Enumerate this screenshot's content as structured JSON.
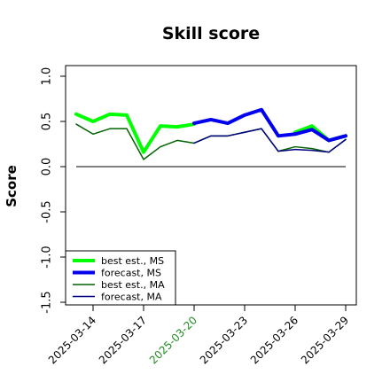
{
  "chart_data": {
    "type": "line",
    "title": "Skill score",
    "xlabel": "",
    "ylabel": "Score",
    "ylim": [
      -1.5,
      1.0
    ],
    "yticks": [
      -1.5,
      -1.0,
      -0.5,
      0.0,
      0.5,
      1.0
    ],
    "ytick_labels": [
      "-1.5",
      "-1.0",
      "-0.5",
      "0.0",
      "0.5",
      "1.0"
    ],
    "x": [
      "2025-03-13",
      "2025-03-14",
      "2025-03-15",
      "2025-03-16",
      "2025-03-17",
      "2025-03-18",
      "2025-03-19",
      "2025-03-20",
      "2025-03-21",
      "2025-03-22",
      "2025-03-23",
      "2025-03-24",
      "2025-03-25",
      "2025-03-26",
      "2025-03-27",
      "2025-03-28",
      "2025-03-29"
    ],
    "xtick_labels": [
      "2025-03-14",
      "2025-03-17",
      "2025-03-20",
      "2025-03-23",
      "2025-03-26",
      "2025-03-29"
    ],
    "xtick_colors": [
      "#000000",
      "#000000",
      "#228B22",
      "#000000",
      "#000000",
      "#000000"
    ],
    "reference_line": 0.0,
    "grid": false,
    "legend_position": "bottom-left",
    "series": [
      {
        "name": "best est., MS",
        "color": "#00ff00",
        "width": 4,
        "values": [
          0.58,
          0.5,
          0.58,
          0.57,
          0.16,
          0.45,
          0.44,
          0.47,
          null,
          null,
          null,
          null,
          null,
          0.38,
          0.45,
          0.29,
          0.34
        ]
      },
      {
        "name": "forecast, MS",
        "color": "#0000ee",
        "width": 4,
        "values": [
          null,
          null,
          null,
          null,
          null,
          null,
          null,
          0.48,
          0.52,
          0.48,
          0.57,
          0.63,
          0.34,
          0.36,
          0.41,
          0.29,
          0.34
        ]
      },
      {
        "name": "best est., MA",
        "color": "#006400",
        "width": 1.5,
        "values": [
          0.47,
          0.36,
          0.42,
          0.42,
          0.08,
          0.22,
          0.29,
          0.26,
          0.34,
          0.34,
          0.38,
          0.42,
          0.17,
          0.22,
          0.2,
          0.16,
          0.3
        ]
      },
      {
        "name": "forecast, MA",
        "color": "#000080",
        "width": 1.5,
        "values": [
          null,
          null,
          null,
          null,
          null,
          null,
          null,
          0.26,
          0.34,
          0.34,
          0.38,
          0.42,
          0.17,
          0.19,
          0.18,
          0.16,
          0.3
        ]
      }
    ]
  }
}
